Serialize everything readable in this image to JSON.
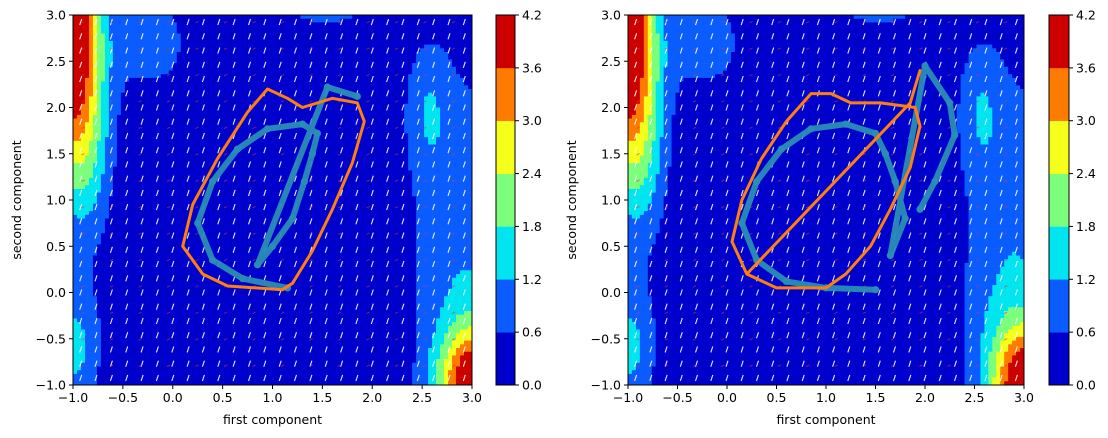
{
  "chart_data": [
    {
      "type": "contourf",
      "xlabel": "first component",
      "ylabel": "second component",
      "xlim": [
        -1.0,
        3.0
      ],
      "ylim": [
        -1.0,
        3.0
      ],
      "xticks": [
        "−1.0",
        "−0.5",
        "0.0",
        "0.5",
        "1.0",
        "1.5",
        "2.0",
        "2.5",
        "3.0"
      ],
      "yticks": [
        "−1.0",
        "−0.5",
        "0.0",
        "0.5",
        "1.0",
        "1.5",
        "2.0",
        "2.5",
        "3.0"
      ],
      "colorbar": {
        "levels": [
          0.0,
          0.6,
          1.2,
          1.8,
          2.4,
          3.0,
          3.6,
          4.2
        ],
        "tick_labels": [
          "0.0",
          "0.6",
          "1.2",
          "1.8",
          "2.4",
          "3.0",
          "3.6",
          "4.2"
        ],
        "colors": [
          "#0000cd",
          "#0a5cff",
          "#00e5f0",
          "#7cff7c",
          "#f5ff1a",
          "#ff7b00",
          "#cd0000"
        ]
      },
      "field_colors": {
        "white_arrows": "#ffffff",
        "red_arrows": "#e8303a"
      },
      "series": [
        {
          "style": "scatter",
          "color": "#2a8db5",
          "points": [
            [
              1.15,
              0.05
            ],
            [
              0.7,
              0.15
            ],
            [
              0.4,
              0.35
            ],
            [
              0.25,
              0.75
            ],
            [
              0.4,
              1.2
            ],
            [
              0.65,
              1.55
            ],
            [
              0.95,
              1.77
            ],
            [
              1.3,
              1.82
            ],
            [
              1.45,
              1.72
            ],
            [
              1.4,
              1.5
            ],
            [
              1.32,
              1.2
            ],
            [
              1.2,
              0.8
            ],
            [
              1.0,
              0.5
            ],
            [
              0.85,
              0.3
            ],
            [
              1.55,
              2.22
            ],
            [
              1.85,
              2.12
            ]
          ]
        },
        {
          "style": "line",
          "color": "#ff7f0e",
          "points": [
            [
              0.3,
              0.2
            ],
            [
              0.55,
              0.07
            ],
            [
              1.1,
              0.03
            ],
            [
              1.2,
              0.1
            ],
            [
              1.4,
              0.45
            ],
            [
              1.6,
              0.9
            ],
            [
              1.8,
              1.4
            ],
            [
              1.92,
              1.85
            ],
            [
              1.85,
              2.05
            ],
            [
              1.6,
              2.1
            ],
            [
              1.3,
              2.0
            ],
            [
              1.15,
              2.1
            ],
            [
              0.95,
              2.2
            ],
            [
              0.75,
              1.95
            ],
            [
              0.45,
              1.45
            ],
            [
              0.2,
              0.95
            ],
            [
              0.1,
              0.5
            ],
            [
              0.3,
              0.2
            ]
          ]
        }
      ]
    },
    {
      "type": "contourf",
      "xlabel": "first component",
      "ylabel": "second component",
      "xlim": [
        -1.0,
        3.0
      ],
      "ylim": [
        -1.0,
        3.0
      ],
      "xticks": [
        "−1.0",
        "−0.5",
        "0.0",
        "0.5",
        "1.0",
        "1.5",
        "2.0",
        "2.5",
        "3.0"
      ],
      "yticks": [
        "−1.0",
        "−0.5",
        "0.0",
        "0.5",
        "1.0",
        "1.5",
        "2.0",
        "2.5",
        "3.0"
      ],
      "colorbar": {
        "levels": [
          0.0,
          0.6,
          1.2,
          1.8,
          2.4,
          3.0,
          3.6,
          4.2
        ],
        "tick_labels": [
          "0.0",
          "0.6",
          "1.2",
          "1.8",
          "2.4",
          "3.0",
          "3.6",
          "4.2"
        ],
        "colors": [
          "#0000cd",
          "#0a5cff",
          "#00e5f0",
          "#7cff7c",
          "#f5ff1a",
          "#ff7b00",
          "#cd0000"
        ]
      },
      "field_colors": {
        "white_arrows": "#ffffff",
        "red_arrows": "#e8303a"
      },
      "series": [
        {
          "style": "scatter",
          "color": "#2a8db5",
          "points": [
            [
              1.5,
              0.03
            ],
            [
              1.0,
              0.05
            ],
            [
              0.6,
              0.12
            ],
            [
              0.3,
              0.35
            ],
            [
              0.15,
              0.75
            ],
            [
              0.3,
              1.2
            ],
            [
              0.55,
              1.55
            ],
            [
              0.85,
              1.77
            ],
            [
              1.2,
              1.82
            ],
            [
              1.5,
              1.72
            ],
            [
              1.6,
              1.5
            ],
            [
              1.7,
              1.2
            ],
            [
              1.8,
              0.8
            ],
            [
              1.65,
              0.4
            ],
            [
              2.0,
              2.45
            ],
            [
              2.25,
              2.05
            ],
            [
              2.3,
              1.7
            ],
            [
              2.1,
              1.2
            ],
            [
              1.95,
              0.9
            ]
          ]
        },
        {
          "style": "line",
          "color": "#ff7f0e",
          "points": [
            [
              0.2,
              0.2
            ],
            [
              0.5,
              0.05
            ],
            [
              1.0,
              0.05
            ],
            [
              1.2,
              0.2
            ],
            [
              1.45,
              0.5
            ],
            [
              1.65,
              0.9
            ],
            [
              1.85,
              1.35
            ],
            [
              1.95,
              1.8
            ],
            [
              1.9,
              2.0
            ],
            [
              1.55,
              2.05
            ],
            [
              1.25,
              2.05
            ],
            [
              1.05,
              2.15
            ],
            [
              0.85,
              2.15
            ],
            [
              0.6,
              1.85
            ],
            [
              0.35,
              1.45
            ],
            [
              0.15,
              1.0
            ],
            [
              0.05,
              0.55
            ],
            [
              0.2,
              0.2
            ],
            [
              1.85,
              2.05
            ],
            [
              1.95,
              2.4
            ]
          ]
        }
      ]
    }
  ]
}
